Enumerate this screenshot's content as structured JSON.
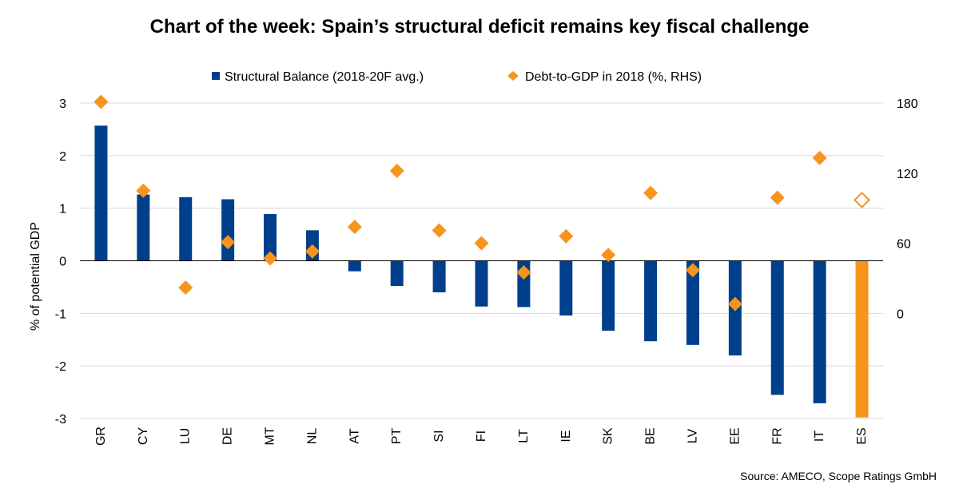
{
  "source": "Source: AMECO, Scope Ratings GmbH",
  "chart_data": {
    "type": "bar",
    "title": "Chart of the week: Spain’s structural deficit remains key fiscal challenge",
    "ylabel": "% of potential GDP",
    "categories": [
      "GR",
      "CY",
      "LU",
      "DE",
      "MT",
      "NL",
      "AT",
      "PT",
      "SI",
      "FI",
      "LT",
      "IE",
      "SK",
      "BE",
      "LV",
      "EE",
      "FR",
      "IT",
      "ES"
    ],
    "series": [
      {
        "name": "Structural Balance (2018-20F avg.)",
        "axis": "left",
        "kind": "bar",
        "color": "#003f8c",
        "highlight_color": "#f7941d",
        "highlight_category": "ES",
        "values": [
          2.57,
          1.26,
          1.21,
          1.17,
          0.89,
          0.58,
          -0.2,
          -0.48,
          -0.6,
          -0.87,
          -0.88,
          -1.04,
          -1.33,
          -1.53,
          -1.6,
          -1.8,
          -2.55,
          -2.71,
          -2.98
        ]
      },
      {
        "name": "Debt-to-GDP in 2018 (%, RHS)",
        "axis": "right",
        "kind": "diamond",
        "color": "#f7941d",
        "hollow_category": "ES",
        "values": [
          181,
          105,
          22,
          61,
          47,
          53,
          74,
          122,
          71,
          60,
          35,
          66,
          50,
          103,
          37,
          8,
          99,
          133,
          97
        ]
      }
    ],
    "ylim_left": [
      -3,
      3
    ],
    "yticks_left": [
      "3",
      "2",
      "1",
      "0",
      "-1",
      "-2",
      "-3"
    ],
    "ylim_right": [
      -90,
      180
    ],
    "yticks_right": [
      "180",
      "120",
      "60",
      "0"
    ],
    "grid": true,
    "legend_position": "top-center"
  }
}
